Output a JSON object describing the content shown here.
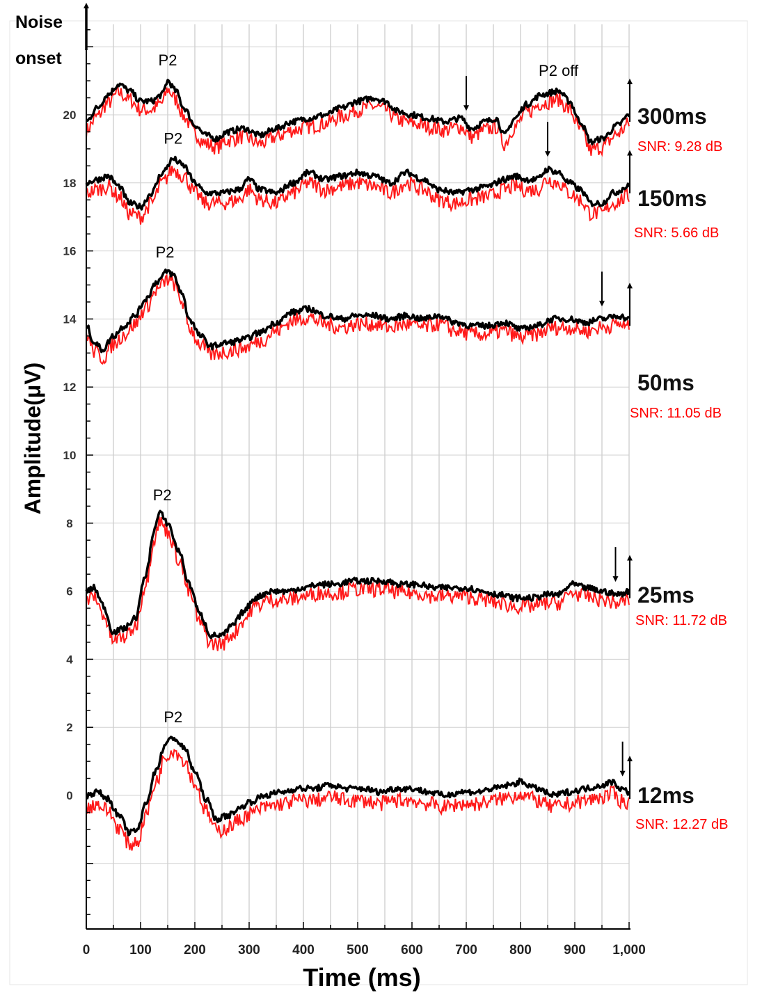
{
  "chart_data": {
    "type": "line",
    "xlabel": "Time (ms)",
    "ylabel": "Amplitude(μV)",
    "xlim": [
      0,
      1000
    ],
    "ylim": [
      -4,
      24
    ],
    "x_ticks": [
      {
        "value": 0,
        "label": "0"
      },
      {
        "value": 100,
        "label": "100"
      },
      {
        "value": 200,
        "label": "200"
      },
      {
        "value": 300,
        "label": "300"
      },
      {
        "value": 400,
        "label": "400"
      },
      {
        "value": 500,
        "label": "500"
      },
      {
        "value": 600,
        "label": "600"
      },
      {
        "value": 700,
        "label": "700"
      },
      {
        "value": 800,
        "label": "800"
      },
      {
        "value": 900,
        "label": "900"
      },
      {
        "value": 1000,
        "label": "1,000"
      }
    ],
    "y_ticks": [
      {
        "value": 0,
        "label": "0"
      },
      {
        "value": 2,
        "label": "2"
      },
      {
        "value": 4,
        "label": "4"
      },
      {
        "value": 6,
        "label": "6"
      },
      {
        "value": 8,
        "label": "8"
      },
      {
        "value": 10,
        "label": "10"
      },
      {
        "value": 12,
        "label": "12"
      },
      {
        "value": 14,
        "label": "14"
      },
      {
        "value": 16,
        "label": "16"
      },
      {
        "value": 18,
        "label": "18"
      },
      {
        "value": 20,
        "label": "20"
      }
    ],
    "grid": true,
    "series_colors": {
      "black_trace": "#000000",
      "red_trace": "#ff1a1a"
    },
    "onset_annotation": {
      "text_line1": "Noise",
      "text_line2": "onset",
      "x": 0
    },
    "conditions": [
      {
        "label": "300ms",
        "snr": "SNR: 9.28 dB",
        "red_offset": -0.25,
        "black": [
          [
            0,
            19.8
          ],
          [
            20,
            20.2
          ],
          [
            40,
            20.6
          ],
          [
            60,
            20.9
          ],
          [
            80,
            20.7
          ],
          [
            100,
            20.4
          ],
          [
            120,
            20.4
          ],
          [
            140,
            20.6
          ],
          [
            150,
            21.0
          ],
          [
            165,
            20.7
          ],
          [
            180,
            20.2
          ],
          [
            200,
            19.7
          ],
          [
            220,
            19.4
          ],
          [
            240,
            19.3
          ],
          [
            260,
            19.5
          ],
          [
            290,
            19.6
          ],
          [
            320,
            19.4
          ],
          [
            350,
            19.6
          ],
          [
            380,
            19.8
          ],
          [
            410,
            19.9
          ],
          [
            440,
            20.0
          ],
          [
            470,
            20.2
          ],
          [
            500,
            20.4
          ],
          [
            530,
            20.5
          ],
          [
            550,
            20.4
          ],
          [
            575,
            20.1
          ],
          [
            600,
            20.0
          ],
          [
            630,
            19.9
          ],
          [
            660,
            19.8
          ],
          [
            690,
            19.9
          ],
          [
            710,
            19.6
          ],
          [
            735,
            19.8
          ],
          [
            755,
            19.9
          ],
          [
            770,
            19.4
          ],
          [
            790,
            19.9
          ],
          [
            810,
            20.3
          ],
          [
            840,
            20.6
          ],
          [
            870,
            20.7
          ],
          [
            890,
            20.4
          ],
          [
            910,
            19.8
          ],
          [
            930,
            19.2
          ],
          [
            950,
            19.3
          ],
          [
            980,
            19.7
          ],
          [
            1000,
            20.0
          ]
        ],
        "annotations": [
          {
            "text": "P2",
            "x": 150
          },
          {
            "text": "P2 off",
            "x": 870
          },
          {
            "type": "down_arrow",
            "x": 700
          },
          {
            "type": "up_arrow",
            "x": 1000
          }
        ]
      },
      {
        "label": "150ms",
        "snr": "SNR: 5.66 dB",
        "red_offset": -0.3,
        "black": [
          [
            0,
            18.0
          ],
          [
            20,
            18.1
          ],
          [
            40,
            18.2
          ],
          [
            60,
            17.9
          ],
          [
            80,
            17.4
          ],
          [
            100,
            17.3
          ],
          [
            120,
            17.7
          ],
          [
            140,
            18.3
          ],
          [
            160,
            18.7
          ],
          [
            180,
            18.5
          ],
          [
            200,
            18.0
          ],
          [
            220,
            17.7
          ],
          [
            250,
            17.7
          ],
          [
            280,
            17.8
          ],
          [
            300,
            18.1
          ],
          [
            320,
            17.8
          ],
          [
            350,
            17.7
          ],
          [
            380,
            18.0
          ],
          [
            410,
            18.3
          ],
          [
            440,
            18.1
          ],
          [
            470,
            18.2
          ],
          [
            500,
            18.3
          ],
          [
            530,
            18.2
          ],
          [
            560,
            18.0
          ],
          [
            590,
            18.3
          ],
          [
            620,
            18.1
          ],
          [
            650,
            17.8
          ],
          [
            680,
            17.7
          ],
          [
            710,
            17.8
          ],
          [
            740,
            17.9
          ],
          [
            770,
            18.1
          ],
          [
            790,
            18.2
          ],
          [
            810,
            18.1
          ],
          [
            830,
            18.1
          ],
          [
            850,
            18.4
          ],
          [
            870,
            18.3
          ],
          [
            890,
            18.0
          ],
          [
            910,
            17.8
          ],
          [
            930,
            17.4
          ],
          [
            950,
            17.4
          ],
          [
            970,
            17.7
          ],
          [
            1000,
            17.9
          ]
        ],
        "annotations": [
          {
            "text": "P2",
            "x": 160
          },
          {
            "type": "down_arrow",
            "x": 850
          },
          {
            "type": "up_arrow",
            "x": 1000
          }
        ]
      },
      {
        "label": "50ms",
        "snr": "SNR: 11.05 dB",
        "red_offset": -0.25,
        "black": [
          [
            0,
            13.8
          ],
          [
            15,
            13.3
          ],
          [
            30,
            13.1
          ],
          [
            50,
            13.5
          ],
          [
            70,
            13.8
          ],
          [
            90,
            14.1
          ],
          [
            110,
            14.6
          ],
          [
            130,
            15.1
          ],
          [
            150,
            15.4
          ],
          [
            160,
            15.3
          ],
          [
            175,
            14.8
          ],
          [
            190,
            14.0
          ],
          [
            210,
            13.5
          ],
          [
            230,
            13.2
          ],
          [
            260,
            13.3
          ],
          [
            290,
            13.4
          ],
          [
            320,
            13.6
          ],
          [
            350,
            13.9
          ],
          [
            380,
            14.2
          ],
          [
            410,
            14.3
          ],
          [
            440,
            14.1
          ],
          [
            470,
            14.0
          ],
          [
            500,
            14.1
          ],
          [
            530,
            14.1
          ],
          [
            560,
            14.0
          ],
          [
            590,
            14.1
          ],
          [
            620,
            14.0
          ],
          [
            650,
            14.1
          ],
          [
            680,
            13.9
          ],
          [
            710,
            13.8
          ],
          [
            740,
            13.8
          ],
          [
            770,
            13.9
          ],
          [
            800,
            13.7
          ],
          [
            830,
            13.8
          ],
          [
            860,
            14.0
          ],
          [
            890,
            14.0
          ],
          [
            920,
            13.9
          ],
          [
            950,
            14.0
          ],
          [
            980,
            14.1
          ],
          [
            1000,
            14.0
          ]
        ],
        "annotations": [
          {
            "text": "P2",
            "x": 145
          },
          {
            "type": "down_arrow",
            "x": 950
          },
          {
            "type": "up_arrow",
            "x": 1000
          }
        ]
      },
      {
        "label": "25ms",
        "snr": "SNR: 11.72 dB",
        "red_offset": -0.25,
        "black": [
          [
            0,
            6.0
          ],
          [
            15,
            6.1
          ],
          [
            30,
            5.6
          ],
          [
            50,
            4.8
          ],
          [
            70,
            4.9
          ],
          [
            90,
            5.2
          ],
          [
            110,
            6.5
          ],
          [
            125,
            7.8
          ],
          [
            135,
            8.3
          ],
          [
            150,
            8.0
          ],
          [
            170,
            7.2
          ],
          [
            190,
            6.2
          ],
          [
            210,
            5.3
          ],
          [
            230,
            4.7
          ],
          [
            250,
            4.7
          ],
          [
            270,
            5.0
          ],
          [
            290,
            5.4
          ],
          [
            310,
            5.8
          ],
          [
            340,
            6.0
          ],
          [
            370,
            6.0
          ],
          [
            400,
            6.1
          ],
          [
            430,
            6.2
          ],
          [
            460,
            6.2
          ],
          [
            490,
            6.3
          ],
          [
            520,
            6.3
          ],
          [
            550,
            6.3
          ],
          [
            580,
            6.2
          ],
          [
            610,
            6.2
          ],
          [
            640,
            6.1
          ],
          [
            670,
            6.1
          ],
          [
            700,
            6.1
          ],
          [
            730,
            6.0
          ],
          [
            760,
            5.9
          ],
          [
            790,
            5.8
          ],
          [
            820,
            5.8
          ],
          [
            850,
            5.9
          ],
          [
            870,
            5.9
          ],
          [
            895,
            6.2
          ],
          [
            920,
            6.1
          ],
          [
            950,
            6.0
          ],
          [
            980,
            5.9
          ],
          [
            1000,
            6.0
          ]
        ],
        "annotations": [
          {
            "text": "P2",
            "x": 140
          },
          {
            "type": "down_arrow",
            "x": 975
          },
          {
            "type": "up_arrow",
            "x": 1000
          }
        ]
      },
      {
        "label": "12ms",
        "snr": "SNR: 12.27 dB",
        "red_offset": -0.35,
        "black": [
          [
            0,
            0.0
          ],
          [
            20,
            0.1
          ],
          [
            40,
            -0.1
          ],
          [
            60,
            -0.6
          ],
          [
            80,
            -1.1
          ],
          [
            95,
            -1.0
          ],
          [
            110,
            -0.2
          ],
          [
            130,
            0.8
          ],
          [
            145,
            1.5
          ],
          [
            160,
            1.7
          ],
          [
            180,
            1.4
          ],
          [
            200,
            0.7
          ],
          [
            220,
            -0.1
          ],
          [
            240,
            -0.7
          ],
          [
            260,
            -0.6
          ],
          [
            280,
            -0.4
          ],
          [
            300,
            -0.2
          ],
          [
            330,
            0.0
          ],
          [
            360,
            0.1
          ],
          [
            390,
            0.2
          ],
          [
            420,
            0.2
          ],
          [
            450,
            0.3
          ],
          [
            480,
            0.2
          ],
          [
            510,
            0.2
          ],
          [
            540,
            0.1
          ],
          [
            570,
            0.2
          ],
          [
            600,
            0.2
          ],
          [
            630,
            0.1
          ],
          [
            660,
            0.0
          ],
          [
            690,
            0.1
          ],
          [
            720,
            0.1
          ],
          [
            750,
            0.2
          ],
          [
            780,
            0.3
          ],
          [
            800,
            0.4
          ],
          [
            830,
            0.2
          ],
          [
            860,
            0.0
          ],
          [
            890,
            0.1
          ],
          [
            920,
            0.2
          ],
          [
            950,
            0.3
          ],
          [
            970,
            0.4
          ],
          [
            985,
            0.2
          ],
          [
            1000,
            0.1
          ]
        ],
        "annotations": [
          {
            "text": "P2",
            "x": 160
          },
          {
            "type": "down_arrow",
            "x": 988
          },
          {
            "type": "up_arrow",
            "x": 1000
          }
        ]
      }
    ]
  }
}
